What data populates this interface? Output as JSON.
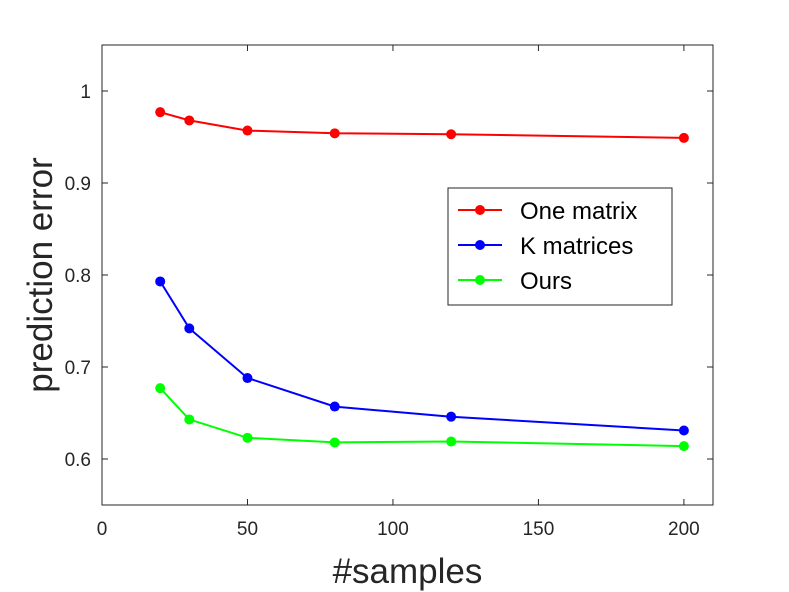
{
  "chart_data": {
    "type": "line",
    "title": "",
    "xlabel": "#samples",
    "ylabel": "prediction error",
    "xlim": [
      0,
      210
    ],
    "ylim": [
      0.55,
      1.05
    ],
    "xticks": [
      0,
      50,
      100,
      150,
      200
    ],
    "yticks": [
      0.6,
      0.7,
      0.8,
      0.9,
      1
    ],
    "xtick_labels": [
      "0",
      "50",
      "100",
      "150",
      "200"
    ],
    "ytick_labels": [
      "0.6",
      "0.7",
      "0.8",
      "0.9",
      "1"
    ],
    "grid": false,
    "legend_position": "right",
    "x": [
      20,
      30,
      50,
      80,
      120,
      200
    ],
    "series": [
      {
        "name": "One matrix",
        "color": "#ff0000",
        "values": [
          0.977,
          0.968,
          0.957,
          0.954,
          0.953,
          0.949
        ]
      },
      {
        "name": "K matrices",
        "color": "#0000ff",
        "values": [
          0.793,
          0.742,
          0.688,
          0.657,
          0.646,
          0.631
        ]
      },
      {
        "name": "Ours",
        "color": "#00ff00",
        "values": [
          0.677,
          0.643,
          0.623,
          0.618,
          0.619,
          0.614
        ]
      }
    ]
  }
}
